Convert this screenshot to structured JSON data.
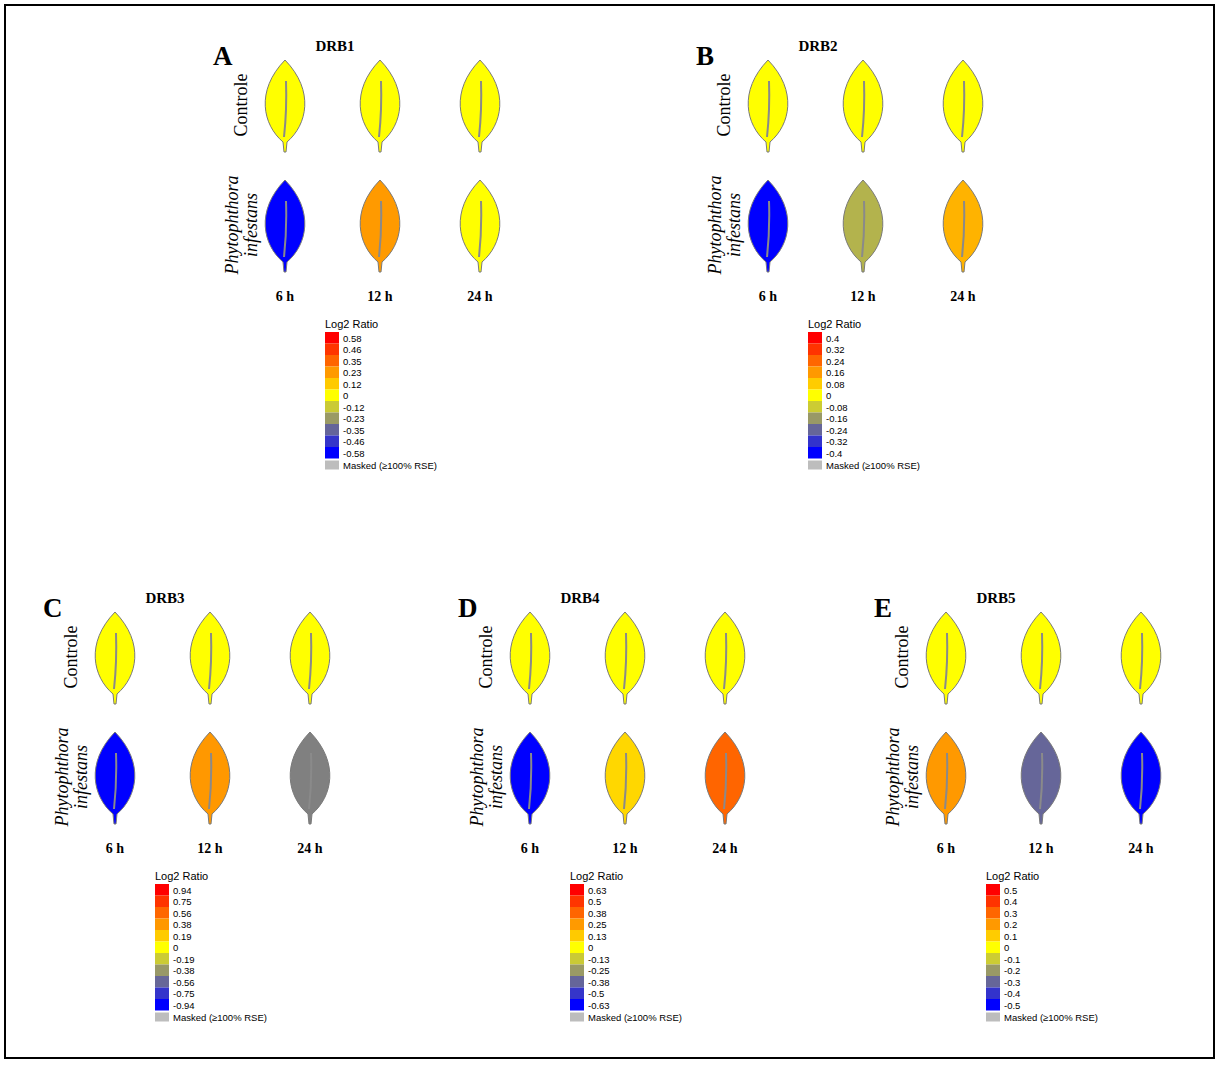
{
  "chart_data": [
    {
      "type": "heatmap",
      "label": "A",
      "title": "DRB1",
      "rows": [
        "Controle",
        "Phytophthora infestans"
      ],
      "categories": [
        "6 h",
        "12 h",
        "24 h"
      ],
      "cells": [
        [
          0,
          0,
          0
        ],
        [
          -0.58,
          0.23,
          0
        ]
      ],
      "colorbar": {
        "title": "Log2 Ratio",
        "ticks": [
          0.58,
          0.46,
          0.35,
          0.23,
          0.12,
          0,
          -0.12,
          -0.23,
          -0.35,
          -0.46,
          -0.58
        ],
        "masked": "Masked (≥100% RSE)"
      }
    },
    {
      "type": "heatmap",
      "label": "B",
      "title": "DRB2",
      "rows": [
        "Controle",
        "Phytophthora infestans"
      ],
      "categories": [
        "6 h",
        "12 h",
        "24 h"
      ],
      "cells": [
        [
          0,
          0,
          0
        ],
        [
          -0.4,
          -0.12,
          0.12
        ]
      ],
      "colorbar": {
        "title": "Log2 Ratio",
        "ticks": [
          0.4,
          0.32,
          0.24,
          0.16,
          0.08,
          0,
          -0.08,
          -0.16,
          -0.24,
          -0.32,
          -0.4
        ],
        "masked": "Masked (≥100% RSE)"
      }
    },
    {
      "type": "heatmap",
      "label": "C",
      "title": "DRB3",
      "rows": [
        "Controle",
        "Phytophthora infestans"
      ],
      "categories": [
        "6 h",
        "12 h",
        "24 h"
      ],
      "cells": [
        [
          0,
          0,
          0
        ],
        [
          -0.94,
          0.38,
          -0.47
        ]
      ],
      "colorbar": {
        "title": "Log2 Ratio",
        "ticks": [
          0.94,
          0.75,
          0.56,
          0.38,
          0.19,
          0,
          -0.19,
          -0.38,
          -0.56,
          -0.75,
          -0.94
        ],
        "masked": "Masked (≥100% RSE)"
      }
    },
    {
      "type": "heatmap",
      "label": "D",
      "title": "DRB4",
      "rows": [
        "Controle",
        "Phytophthora infestans"
      ],
      "categories": [
        "6 h",
        "12 h",
        "24 h"
      ],
      "cells": [
        [
          0,
          0,
          0
        ],
        [
          -0.63,
          0.1,
          0.38
        ]
      ],
      "colorbar": {
        "title": "Log2 Ratio",
        "ticks": [
          0.63,
          0.5,
          0.38,
          0.25,
          0.13,
          0,
          -0.13,
          -0.25,
          -0.38,
          -0.5,
          -0.63
        ],
        "masked": "Masked (≥100% RSE)"
      }
    },
    {
      "type": "heatmap",
      "label": "E",
      "title": "DRB5",
      "rows": [
        "Controle",
        "Phytophthora infestans"
      ],
      "categories": [
        "6 h",
        "12 h",
        "24 h"
      ],
      "cells": [
        [
          0,
          0,
          0
        ],
        [
          0.2,
          -0.3,
          -0.5
        ]
      ],
      "colorbar": {
        "title": "Log2 Ratio",
        "ticks": [
          0.5,
          0.4,
          0.3,
          0.2,
          0.1,
          0,
          -0.1,
          -0.2,
          -0.3,
          -0.4,
          -0.5
        ],
        "masked": "Masked (≥100% RSE)"
      }
    }
  ]
}
